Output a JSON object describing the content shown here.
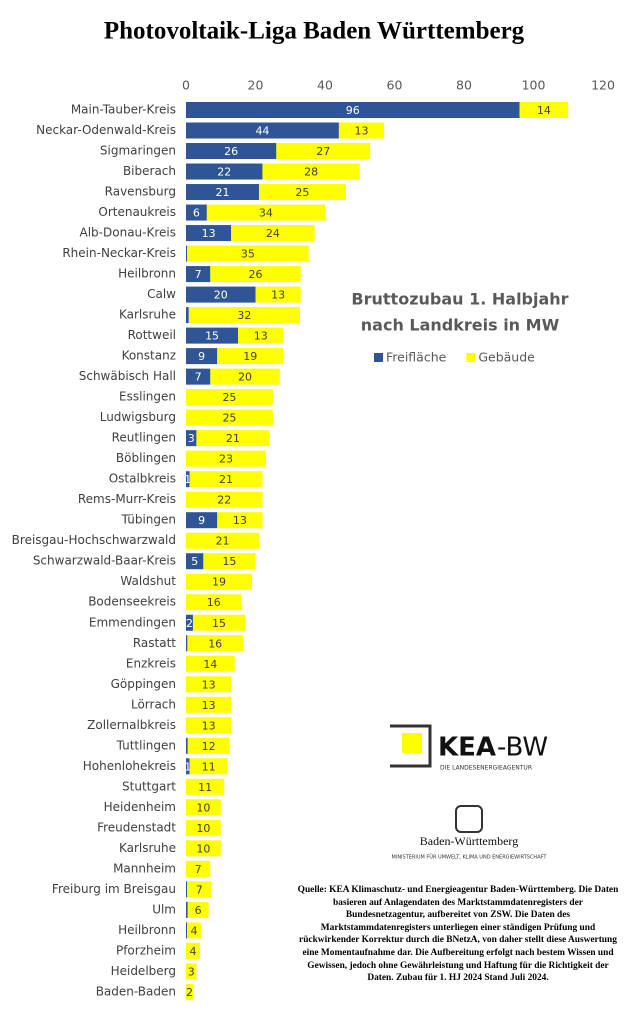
{
  "chart_data": {
    "type": "stacked-bar-horizontal",
    "title": "Photovoltaik-Liga Baden Württemberg",
    "subtitle_lines": [
      "Bruttozubau 1. Halbjahr",
      "nach Landkreis in MW"
    ],
    "categories": [
      "Main-Tauber-Kreis",
      "Neckar-Odenwald-Kreis",
      "Sigmaringen",
      "Biberach",
      "Ravensburg",
      "Ortenaukreis",
      "Alb-Donau-Kreis",
      "Rhein-Neckar-Kreis",
      "Heilbronn",
      "Calw",
      "Karlsruhe",
      "Rottweil",
      "Konstanz",
      "Schwäbisch Hall",
      "Esslingen",
      "Ludwigsburg",
      "Reutlingen",
      "Böblingen",
      "Ostalbkreis",
      "Rems-Murr-Kreis",
      "Tübingen",
      "Breisgau-Hochschwarzwald",
      "Schwarzwald-Baar-Kreis",
      "Waldshut",
      "Bodenseekreis",
      "Emmendingen",
      "Rastatt",
      "Enzkreis",
      "Göppingen",
      "Lörrach",
      "Zollernalbkreis",
      "Tuttlingen",
      "Hohenlohekreis",
      "Stuttgart",
      "Heidenheim",
      "Freudenstadt",
      "Karlsruhe",
      "Mannheim",
      "Freiburg im Breisgau",
      "Ulm",
      "Heilbronn",
      "Pforzheim",
      "Heidelberg",
      "Baden-Baden"
    ],
    "series": [
      {
        "name": "Freifläche",
        "color": "#2f5597",
        "values": [
          96,
          44,
          26,
          22,
          21,
          6,
          13,
          0.3,
          7,
          20,
          0.8,
          15,
          9,
          7,
          0,
          0,
          3,
          0,
          1,
          0,
          9,
          0,
          5,
          0,
          0,
          2,
          0.4,
          0,
          0,
          0,
          0,
          0.5,
          1,
          0,
          0,
          0,
          0,
          0,
          0.3,
          0.5,
          0.3,
          0,
          0,
          0
        ],
        "value_labels": [
          "96",
          "44",
          "26",
          "22",
          "21",
          "6",
          "13",
          null,
          "7",
          "20",
          null,
          "15",
          "9",
          "7",
          null,
          null,
          "3",
          null,
          "1",
          null,
          "9",
          null,
          "5",
          null,
          null,
          "2",
          null,
          null,
          null,
          null,
          null,
          null,
          "1",
          null,
          null,
          null,
          null,
          null,
          null,
          null,
          null,
          null,
          null,
          null
        ]
      },
      {
        "name": "Gebäude",
        "color": "#ffff00",
        "values": [
          14,
          13,
          27,
          28,
          25,
          34,
          24,
          35,
          26,
          13,
          32,
          13,
          19,
          20,
          25,
          25,
          21,
          23,
          21,
          22,
          13,
          21,
          15,
          19,
          16,
          15,
          16,
          14,
          13,
          13,
          13,
          12,
          11,
          11,
          10,
          10,
          10,
          7,
          7,
          6,
          4,
          4,
          3,
          2
        ]
      }
    ],
    "xlim": [
      0,
      120
    ],
    "xticks": [
      0,
      20,
      40,
      60,
      80,
      100,
      120
    ],
    "grid": false,
    "legend": "right"
  },
  "logos": {
    "kea": "KEA",
    "kea_suffix": "-BW",
    "kea_sub": "DIE LANDESENERGIEAGENTUR",
    "bw": "Baden-Württemberg",
    "bw_sub": "MINISTERIUM FÜR UMWELT, KLIMA UND ENERGIEWIRTSCHAFT"
  },
  "source": "Quelle: KEA Klimaschutz- und Energieagentur Baden-Württemberg. Die Daten basieren auf Anlagendaten des Marktstammdatenregisters der Bundesnetzagentur, aufbereitet von ZSW. Die Daten des Marktstammdatenregisters unterliegen einer ständigen Prüfung und rückwirkender Korrektur durch die BNetzA, von daher stellt diese Auswertung eine Momentaufnahme dar. Die Aufbereitung erfolgt nach bestem Wissen und Gewissen, jedoch ohne Gewährleistung und Haftung für die Richtigkeit der Daten. Zubau für 1. HJ 2024 Stand Juli 2024."
}
